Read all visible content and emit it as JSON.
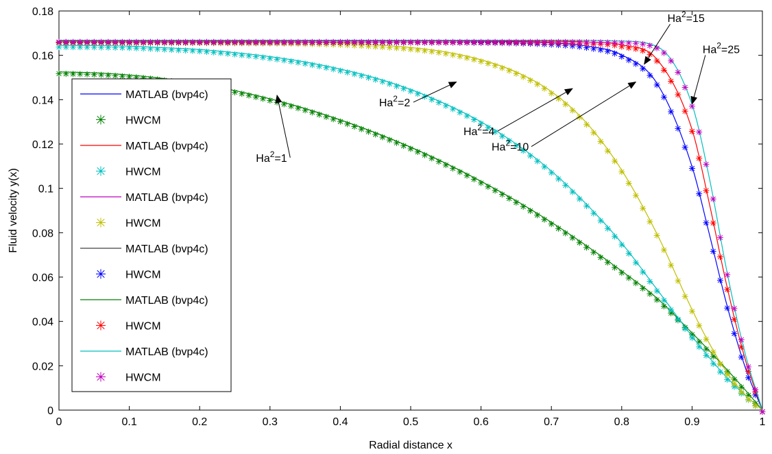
{
  "chart_data": {
    "type": "line",
    "title": "",
    "xlabel": "Radial distance x",
    "ylabel": "Fluid velocity y(x)",
    "xlim": [
      0,
      1
    ],
    "ylim": [
      0,
      0.18
    ],
    "xticks": [
      "0",
      "0.1",
      "0.2",
      "0.3",
      "0.4",
      "0.5",
      "0.6",
      "0.7",
      "0.8",
      "0.9",
      "1"
    ],
    "yticks": [
      "0",
      "0.02",
      "0.04",
      "0.06",
      "0.08",
      "0.1",
      "0.12",
      "0.14",
      "0.16",
      "0.18"
    ],
    "grid": false,
    "legend_position": "left",
    "x": [
      0,
      0.05,
      0.1,
      0.15,
      0.2,
      0.25,
      0.3,
      0.35,
      0.4,
      0.45,
      0.5,
      0.55,
      0.6,
      0.65,
      0.7,
      0.75,
      0.8,
      0.85,
      0.9,
      0.925,
      0.95,
      0.975,
      1.0
    ],
    "series": [
      {
        "label": "Ha^2=1",
        "line_color": "#008000",
        "marker_color": "#008000",
        "values": [
          0.1525,
          0.1521,
          0.1511,
          0.1495,
          0.1471,
          0.1441,
          0.1404,
          0.136,
          0.1309,
          0.1251,
          0.1186,
          0.1113,
          0.1032,
          0.0944,
          0.0847,
          0.0741,
          0.0627,
          0.0505,
          0.0348,
          0.0266,
          0.0181,
          0.0093,
          0.0
        ]
      },
      {
        "label": "Ha^2=2",
        "line_color": "#00bfbf",
        "marker_color": "#00bfbf",
        "values": [
          0.1645,
          0.1644,
          0.1641,
          0.1634,
          0.1626,
          0.1612,
          0.1594,
          0.157,
          0.1538,
          0.1498,
          0.1446,
          0.138,
          0.13,
          0.12,
          0.1078,
          0.0928,
          0.0753,
          0.0545,
          0.0333,
          0.0235,
          0.0145,
          0.0068,
          0.0
        ]
      },
      {
        "label": "Ha^2=4",
        "line_color": "#bfbf00",
        "marker_color": "#bfbf00",
        "values": [
          0.1663,
          0.1663,
          0.1663,
          0.1663,
          0.1663,
          0.1662,
          0.1661,
          0.1659,
          0.1655,
          0.1647,
          0.1635,
          0.1615,
          0.158,
          0.1525,
          0.1436,
          0.1295,
          0.1082,
          0.0795,
          0.0453,
          0.0298,
          0.0168,
          0.0071,
          0.0
        ]
      },
      {
        "label": "Ha^2=10",
        "line_color": "#0000ff",
        "marker_color": "#0000ff",
        "values": [
          0.1665,
          0.1665,
          0.1665,
          0.1665,
          0.1665,
          0.1665,
          0.1665,
          0.1665,
          0.1665,
          0.1665,
          0.1665,
          0.1665,
          0.1664,
          0.1662,
          0.1656,
          0.1642,
          0.1602,
          0.1474,
          0.1098,
          0.0788,
          0.0468,
          0.0198,
          0.0
        ]
      },
      {
        "label": "Ha^2=15",
        "line_color": "#ff0000",
        "marker_color": "#ff0000",
        "values": [
          0.1666,
          0.1666,
          0.1666,
          0.1666,
          0.1666,
          0.1666,
          0.1666,
          0.1666,
          0.1666,
          0.1666,
          0.1666,
          0.1666,
          0.1666,
          0.1665,
          0.1664,
          0.166,
          0.1647,
          0.1582,
          0.1265,
          0.0925,
          0.0552,
          0.0235,
          0.0
        ]
      },
      {
        "label": "Ha^2=25",
        "line_color": "#00bfbf",
        "marker_color": "#bf00bf",
        "values": [
          0.1668,
          0.1668,
          0.1668,
          0.1668,
          0.1668,
          0.1668,
          0.1668,
          0.1668,
          0.1668,
          0.1668,
          0.1668,
          0.1668,
          0.1668,
          0.1668,
          0.1668,
          0.1667,
          0.1664,
          0.164,
          0.1378,
          0.104,
          0.0618,
          0.0261,
          0.0
        ]
      }
    ],
    "legend": [
      {
        "text": "MATLAB (bvp4c)",
        "kind": "line",
        "color": "#0000ff"
      },
      {
        "text": "HWCM",
        "kind": "marker",
        "color": "#008000"
      },
      {
        "text": "MATLAB (bvp4c)",
        "kind": "line",
        "color": "#ff0000"
      },
      {
        "text": "HWCM",
        "kind": "marker",
        "color": "#00bfbf"
      },
      {
        "text": "MATLAB (bvp4c)",
        "kind": "line",
        "color": "#bf00bf"
      },
      {
        "text": "HWCM",
        "kind": "marker",
        "color": "#bfbf00"
      },
      {
        "text": "MATLAB (bvp4c)",
        "kind": "line",
        "color": "#404040"
      },
      {
        "text": "HWCM",
        "kind": "marker",
        "color": "#0000ff"
      },
      {
        "text": "MATLAB (bvp4c)",
        "kind": "line",
        "color": "#008000"
      },
      {
        "text": "HWCM",
        "kind": "marker",
        "color": "#ff0000"
      },
      {
        "text": "MATLAB (bvp4c)",
        "kind": "line",
        "color": "#00bfbf"
      },
      {
        "text": "HWCM",
        "kind": "marker",
        "color": "#bf00bf"
      }
    ],
    "annotations": [
      {
        "base": "Ha",
        "exp": "2",
        "rest": "=1",
        "tx": 0.28,
        "ty": 0.112,
        "ax": 0.31,
        "ay": 0.142
      },
      {
        "base": "Ha",
        "exp": "2",
        "rest": "=2",
        "tx": 0.455,
        "ty": 0.137,
        "ax": 0.565,
        "ay": 0.148
      },
      {
        "base": "Ha",
        "exp": "2",
        "rest": "=4",
        "tx": 0.575,
        "ty": 0.124,
        "ax": 0.73,
        "ay": 0.145
      },
      {
        "base": "Ha",
        "exp": "2",
        "rest": "=10",
        "tx": 0.615,
        "ty": 0.117,
        "ax": 0.82,
        "ay": 0.148
      },
      {
        "base": "Ha",
        "exp": "2",
        "rest": "=15",
        "tx": 0.865,
        "ty": 0.175,
        "ax": 0.832,
        "ay": 0.156
      },
      {
        "base": "Ha",
        "exp": "2",
        "rest": "=25",
        "tx": 0.915,
        "ty": 0.161,
        "ax": 0.9,
        "ay": 0.138
      }
    ]
  }
}
